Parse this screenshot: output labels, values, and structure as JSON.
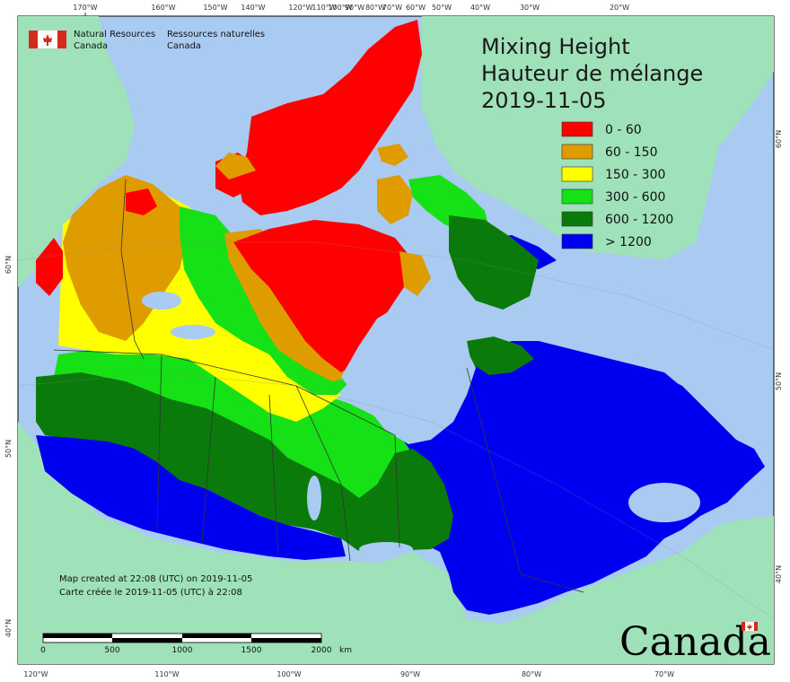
{
  "header": {
    "agency_en_line1": "Natural Resources",
    "agency_en_line2": "Canada",
    "agency_fr_line1": "Ressources naturelles",
    "agency_fr_line2": "Canada"
  },
  "title": {
    "line1": "Mixing Height",
    "line2": "Hauteur de mélange",
    "date": "2019-11-05"
  },
  "legend": [
    {
      "label": "0 - 60",
      "color": "#ff0000"
    },
    {
      "label": "60 - 150",
      "color": "#de9c00"
    },
    {
      "label": "150 - 300",
      "color": "#ffff00"
    },
    {
      "label": "300 - 600",
      "color": "#16e016"
    },
    {
      "label": "600 - 1200",
      "color": "#0a7a0a"
    },
    {
      "label": "> 1200",
      "color": "#0000f0"
    }
  ],
  "colors": {
    "ocean": "#a9cbf2",
    "other_land": "#9fe1b9",
    "boundary": "#333333"
  },
  "footer": {
    "created_en": "Map created at 22:08 (UTC) on 2019-11-05",
    "created_fr": "Carte créée le 2019-11-05 (UTC) à 22:08"
  },
  "scale_bar": {
    "labels": [
      "0",
      "500",
      "1000",
      "1500",
      "2000"
    ],
    "unit": "km"
  },
  "wordmark": "Canada",
  "top_ticks": [
    "170°W",
    "160°W",
    "150°W",
    "140°W",
    "120°W",
    "110°W",
    "100°W",
    "90°W",
    "80°W",
    "70°W",
    "60°W",
    "50°W",
    "40°W",
    "30°W",
    "20°W"
  ],
  "bottom_ticks": [
    "120°W",
    "110°W",
    "100°W",
    "90°W",
    "80°W",
    "70°W"
  ],
  "left_ticks": [
    "60°N",
    "50°N",
    "40°N"
  ],
  "right_ticks": [
    "60°N",
    "50°N",
    "40°N"
  ]
}
